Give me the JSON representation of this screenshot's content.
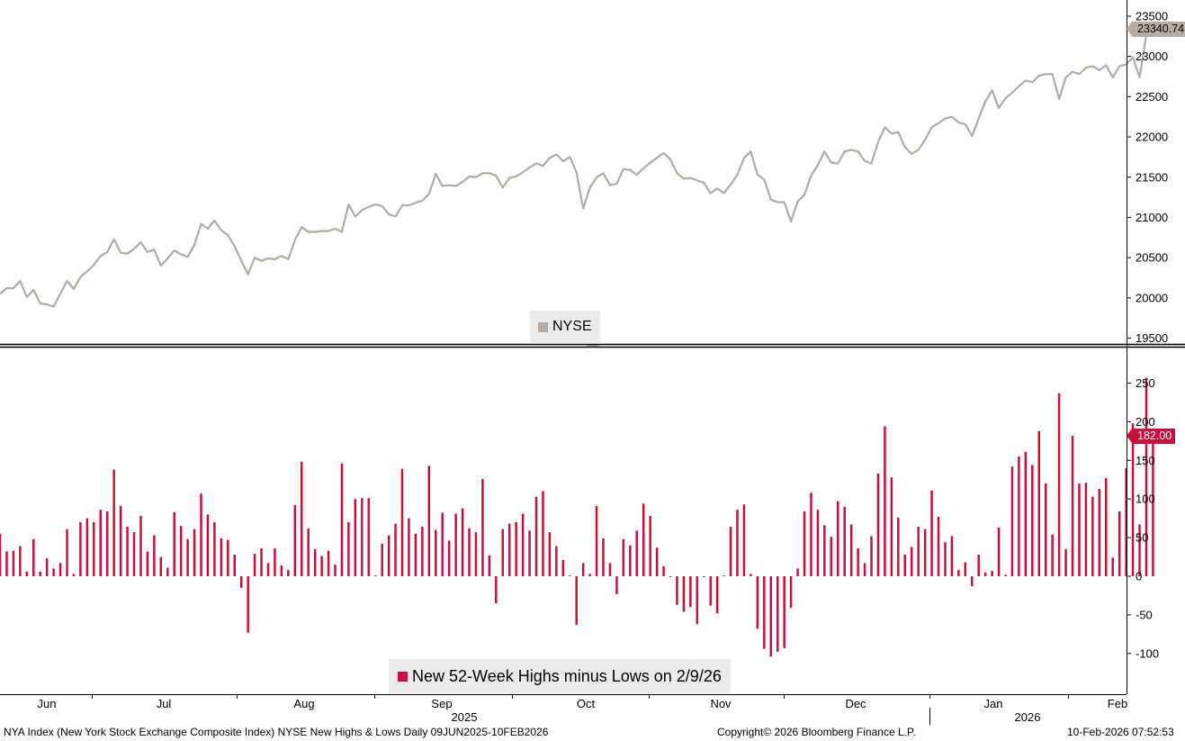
{
  "colors": {
    "price_line": "#b4aaa0",
    "bars": "#c8103b",
    "axis": "#000000",
    "legend_bg": "#ebebeb"
  },
  "chart_data": [
    {
      "type": "line",
      "series_name": "NYSE",
      "last_value_label": "23340.74",
      "ylim": [
        19400,
        23600
      ],
      "y_ticks": [
        "23500",
        "23000",
        "22500",
        "22000",
        "21500",
        "21000",
        "20500",
        "20000",
        "19500"
      ],
      "grid": false,
      "legend": "bottom-center",
      "values": [
        20050,
        20120,
        20120,
        20210,
        20010,
        20100,
        19930,
        19920,
        19890,
        20050,
        20210,
        20110,
        20260,
        20330,
        20410,
        20520,
        20570,
        20730,
        20560,
        20550,
        20610,
        20690,
        20570,
        20600,
        20400,
        20490,
        20590,
        20540,
        20510,
        20660,
        20920,
        20860,
        20960,
        20840,
        20780,
        20640,
        20460,
        20290,
        20500,
        20460,
        20490,
        20480,
        20520,
        20480,
        20720,
        20880,
        20820,
        20820,
        20830,
        20830,
        20860,
        20820,
        21160,
        21010,
        21090,
        21130,
        21160,
        21140,
        21040,
        21010,
        21150,
        21150,
        21180,
        21210,
        21290,
        21540,
        21390,
        21400,
        21390,
        21440,
        21510,
        21500,
        21550,
        21550,
        21520,
        21370,
        21490,
        21510,
        21560,
        21620,
        21670,
        21640,
        21740,
        21780,
        21700,
        21750,
        21560,
        21110,
        21370,
        21500,
        21550,
        21400,
        21420,
        21600,
        21590,
        21530,
        21610,
        21680,
        21740,
        21800,
        21720,
        21550,
        21480,
        21490,
        21460,
        21430,
        21300,
        21360,
        21300,
        21410,
        21530,
        21740,
        21820,
        21530,
        21470,
        21220,
        21190,
        21190,
        20950,
        21200,
        21280,
        21520,
        21650,
        21820,
        21680,
        21670,
        21820,
        21840,
        21820,
        21700,
        21670,
        21940,
        22120,
        22040,
        22060,
        21870,
        21790,
        21840,
        21960,
        22120,
        22170,
        22230,
        22250,
        22180,
        22160,
        22010,
        22230,
        22440,
        22580,
        22360,
        22480,
        22550,
        22630,
        22700,
        22680,
        22760,
        22780,
        22780,
        22470,
        22740,
        22810,
        22780,
        22860,
        22880,
        22830,
        22890,
        22740,
        22880,
        22900,
        22990,
        22740,
        23270,
        23340.74
      ]
    },
    {
      "type": "bar",
      "series_name": "New 52-Week Highs minus Lows on 2/9/26",
      "last_value_label": "182.00",
      "ylim": [
        -150,
        270
      ],
      "y_ticks": [
        "250",
        "200",
        "150",
        "100",
        "50",
        "0",
        "-50",
        "-100"
      ],
      "grid": false,
      "legend": "bottom-center",
      "values": [
        55,
        32,
        33,
        39,
        6,
        48,
        6,
        23,
        10,
        17,
        61,
        3,
        70,
        75,
        70,
        86,
        84,
        138,
        91,
        64,
        57,
        78,
        32,
        53,
        25,
        11,
        83,
        65,
        48,
        61,
        107,
        80,
        70,
        49,
        47,
        28,
        -15,
        -73,
        29,
        36,
        17,
        36,
        14,
        8,
        92,
        148,
        62,
        35,
        26,
        33,
        15,
        146,
        70,
        100,
        101,
        101,
        1,
        42,
        53,
        68,
        139,
        75,
        55,
        64,
        143,
        60,
        82,
        46,
        81,
        88,
        62,
        57,
        126,
        27,
        -35,
        61,
        68,
        70,
        81,
        59,
        103,
        110,
        57,
        39,
        21,
        1,
        -63,
        17,
        3,
        91,
        49,
        17,
        -23,
        48,
        40,
        59,
        94,
        78,
        37,
        13,
        -1,
        -37,
        -46,
        -40,
        -62,
        -1,
        -38,
        -48,
        1,
        64,
        86,
        93,
        3,
        -68,
        -94,
        -104,
        -98,
        -93,
        -41,
        10,
        84,
        108,
        86,
        66,
        51,
        97,
        90,
        67,
        36,
        17,
        52,
        133,
        194,
        128,
        76,
        28,
        38,
        64,
        61,
        111,
        77,
        44,
        52,
        8,
        18,
        -13,
        28,
        5,
        7,
        63,
        2,
        142,
        155,
        161,
        144,
        188,
        120,
        54,
        237,
        35,
        182,
        120,
        121,
        103,
        113,
        127,
        24,
        84,
        140,
        198,
        67,
        257,
        182
      ],
      "x_axis": {
        "months": [
          "Jun",
          "Jul",
          "Aug",
          "Sep",
          "Oct",
          "Nov",
          "Dec",
          "Jan",
          "Feb"
        ],
        "years": [
          "2025",
          "2026"
        ]
      }
    }
  ],
  "footer": {
    "left": "NYA Index (New York Stock Exchange Composite Index) NYSE New Highs & Lows Daily 09JUN2025-10FEB2026",
    "center": "Copyright© 2026 Bloomberg Finance L.P.",
    "right": "10-Feb-2026 07:52:53"
  }
}
